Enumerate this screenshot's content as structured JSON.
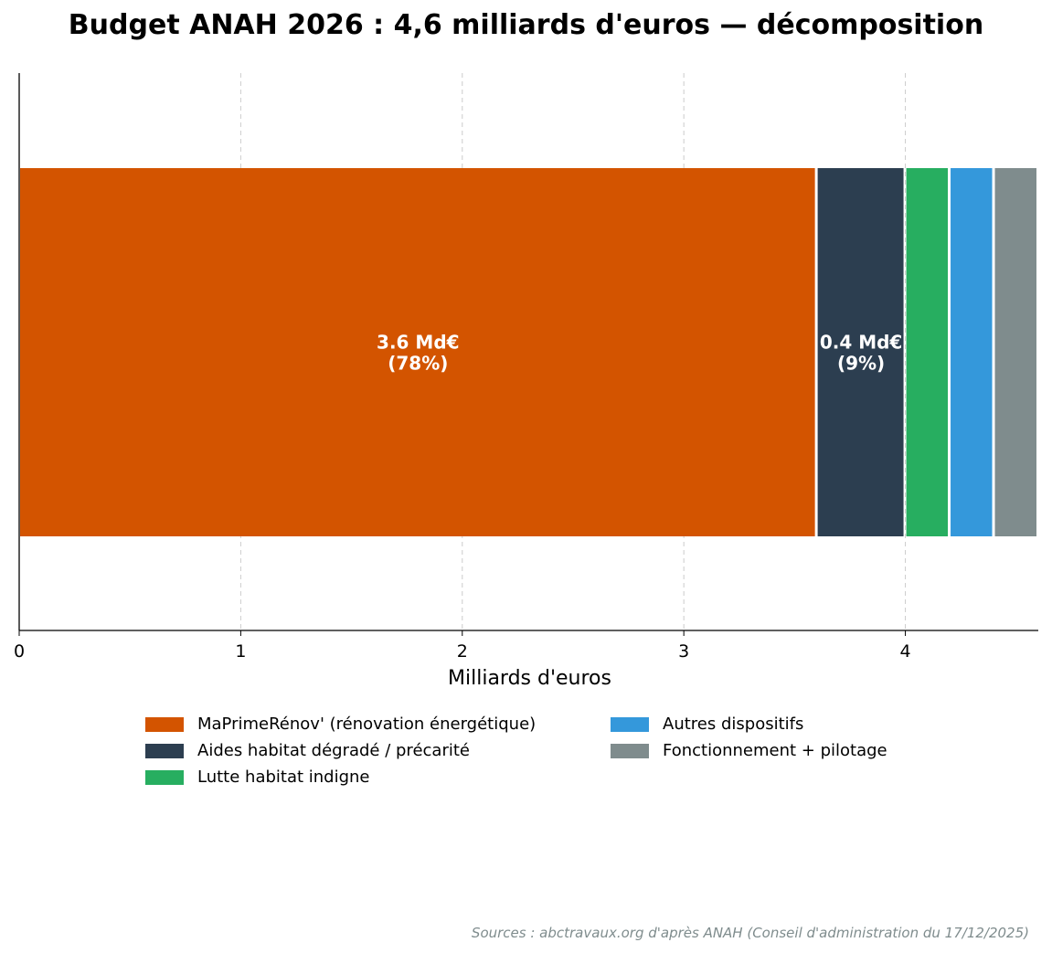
{
  "chart_data": {
    "type": "bar",
    "orientation": "horizontal-stacked",
    "title": "Budget ANAH 2026 : 4,6 milliards d'euros — décomposition",
    "xlabel": "Milliards d'euros",
    "ylabel": "",
    "xlim": [
      0,
      4.6
    ],
    "xticks": [
      "0",
      "1",
      "2",
      "3",
      "4"
    ],
    "grid": "x, dashed",
    "legend_position": "bottom",
    "series": [
      {
        "name": "MaPrimeRénov' (rénovation énergétique)",
        "value": 3.6,
        "color": "#d35400",
        "label_line1": "3.6 Md€",
        "label_line2": "(78%)"
      },
      {
        "name": "Aides habitat dégradé / précarité",
        "value": 0.4,
        "color": "#2c3e50",
        "label_line1": "0.4 Md€",
        "label_line2": "(9%)"
      },
      {
        "name": "Lutte habitat indigne",
        "value": 0.2,
        "color": "#27ae60",
        "label_line1": "",
        "label_line2": ""
      },
      {
        "name": "Autres dispositifs",
        "value": 0.2,
        "color": "#3498db",
        "label_line1": "",
        "label_line2": ""
      },
      {
        "name": "Fonctionnement + pilotage",
        "value": 0.2,
        "color": "#7f8c8d",
        "label_line1": "",
        "label_line2": ""
      }
    ]
  },
  "source": "Sources : abctravaux.org d'après ANAH (Conseil d'administration du 17/12/2025)"
}
